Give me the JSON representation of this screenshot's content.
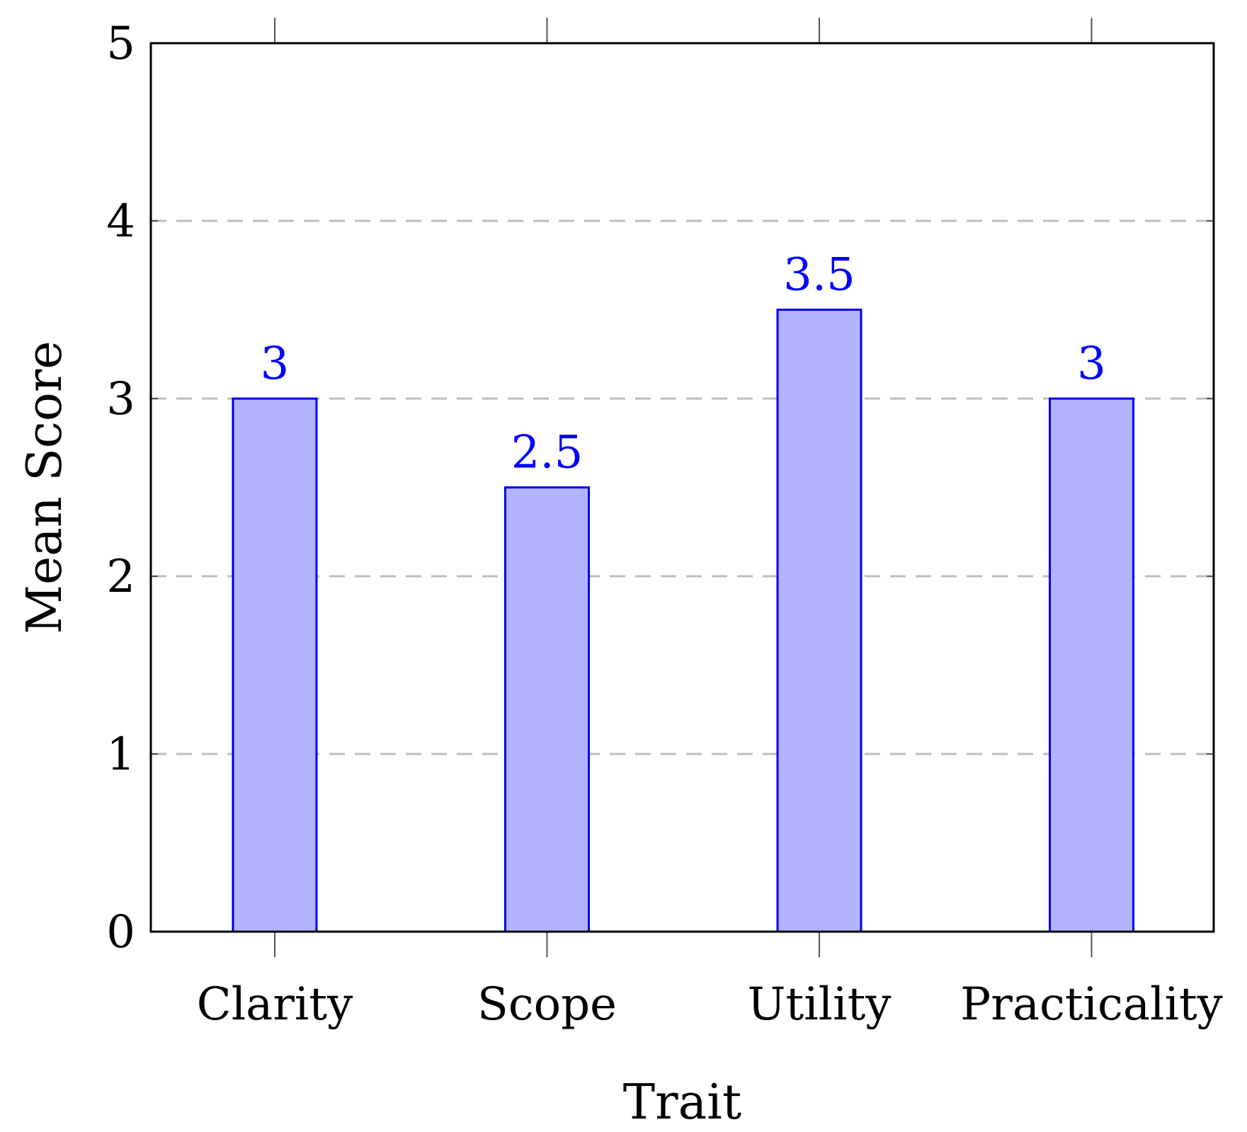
{
  "chart_data": {
    "type": "bar",
    "title": "",
    "xlabel": "Trait",
    "ylabel": "Mean Score",
    "categories": [
      "Clarity",
      "Scope",
      "Utility",
      "Practicality"
    ],
    "values": [
      3,
      2.5,
      3.5,
      3
    ],
    "value_labels": [
      "3",
      "2.5",
      "3.5",
      "3"
    ],
    "ylim": [
      0,
      5
    ],
    "yticks": [
      0,
      1,
      2,
      3,
      4,
      5
    ],
    "ytick_labels": [
      "0",
      "1",
      "2",
      "3",
      "4",
      "5"
    ],
    "grid": "horizontal dashed",
    "legend": "none",
    "colors": {
      "bar_fill": "#b3b3ff",
      "bar_stroke": "#0000ee",
      "value_label": "#0000ff",
      "grid": "#bdbdbd",
      "axis": "#000000"
    }
  }
}
